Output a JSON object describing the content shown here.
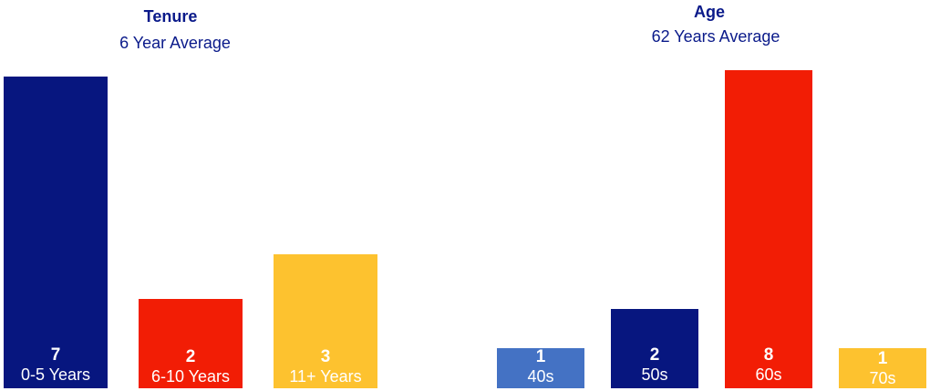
{
  "chart_data": [
    {
      "type": "bar",
      "title": "Tenure",
      "subtitle": "6 Year Average",
      "categories": [
        "0-5 Years",
        "6-10 Years",
        "11+ Years"
      ],
      "values": [
        7,
        2,
        3
      ],
      "colors": [
        "#07167f",
        "#f21d05",
        "#fdc22f"
      ],
      "ylim": [
        0,
        7
      ]
    },
    {
      "type": "bar",
      "title": "Age",
      "subtitle": "62 Years Average",
      "categories": [
        "40s",
        "50s",
        "60s",
        "70s"
      ],
      "values": [
        1,
        2,
        8,
        1
      ],
      "colors": [
        "#4472c4",
        "#07167f",
        "#f21d05",
        "#fdc22f"
      ],
      "ylim": [
        0,
        8
      ]
    }
  ]
}
